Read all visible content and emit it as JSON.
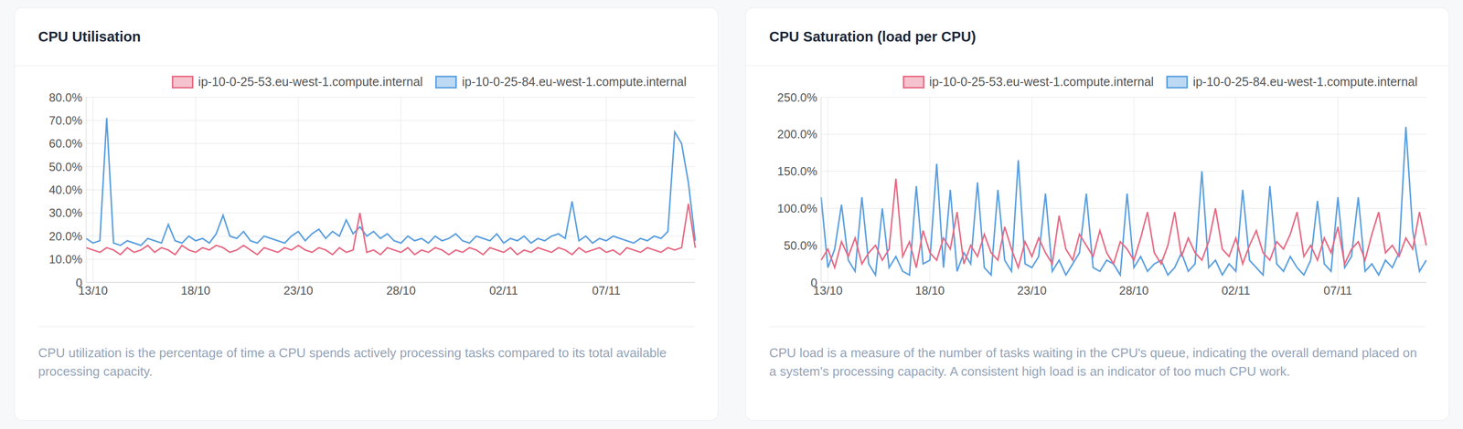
{
  "chart_data": [
    {
      "type": "line",
      "title": "CPU Utilisation",
      "caption": "CPU utilization is the percentage of time a CPU spends actively processing tasks compared to its total available processing capacity.",
      "legend": "top-right",
      "grid": true,
      "categories": [
        null,
        "13/10",
        null,
        null,
        null,
        null,
        null,
        null,
        null,
        null,
        null,
        null,
        null,
        null,
        null,
        null,
        "18/10",
        null,
        null,
        null,
        null,
        null,
        null,
        null,
        null,
        null,
        null,
        null,
        null,
        null,
        null,
        "23/10",
        null,
        null,
        null,
        null,
        null,
        null,
        null,
        null,
        null,
        null,
        null,
        null,
        null,
        null,
        "28/10",
        null,
        null,
        null,
        null,
        null,
        null,
        null,
        null,
        null,
        null,
        null,
        null,
        null,
        null,
        "02/11",
        null,
        null,
        null,
        null,
        null,
        null,
        null,
        null,
        null,
        null,
        null,
        null,
        null,
        null,
        "07/11",
        null,
        null,
        null,
        null,
        null,
        null,
        null,
        null,
        null,
        null,
        null,
        null,
        null
      ],
      "ylim": [
        0,
        80
      ],
      "yticks": [
        0,
        {
          "value": 10,
          "label": "10.0%"
        },
        {
          "value": 20,
          "label": "20.0%"
        },
        {
          "value": 30,
          "label": "30.0%"
        },
        {
          "value": 40,
          "label": "40.0%"
        },
        {
          "value": 50,
          "label": "50.0%"
        },
        {
          "value": 60,
          "label": "60.0%"
        },
        {
          "value": 70,
          "label": "70.0%"
        },
        {
          "value": 80,
          "label": "80.0%"
        }
      ],
      "series": [
        {
          "name": "ip-10-0-25-53.eu-west-1.compute.internal",
          "color": "#e76a84",
          "values": [
            15,
            14,
            13,
            15,
            14,
            12,
            15,
            13,
            14,
            16,
            13,
            15,
            14,
            12,
            16,
            14,
            13,
            15,
            14,
            16,
            15,
            13,
            14,
            16,
            14,
            12,
            15,
            14,
            13,
            15,
            14,
            16,
            14,
            13,
            15,
            14,
            12,
            15,
            13,
            14,
            30,
            13,
            14,
            12,
            15,
            14,
            13,
            15,
            12,
            14,
            13,
            15,
            14,
            12,
            14,
            13,
            15,
            14,
            12,
            15,
            14,
            13,
            15,
            12,
            14,
            13,
            15,
            14,
            13,
            15,
            14,
            12,
            15,
            13,
            14,
            15,
            13,
            14,
            12,
            15,
            14,
            13,
            15,
            14,
            13,
            15,
            14,
            15,
            34,
            15
          ]
        },
        {
          "name": "ip-10-0-25-84.eu-west-1.compute.internal",
          "color": "#5a9fe0",
          "values": [
            19,
            17,
            18,
            71,
            17,
            16,
            18,
            17,
            16,
            19,
            18,
            17,
            25,
            18,
            17,
            20,
            18,
            19,
            17,
            21,
            29,
            20,
            19,
            22,
            18,
            17,
            20,
            19,
            18,
            17,
            20,
            22,
            18,
            21,
            23,
            19,
            22,
            20,
            27,
            21,
            24,
            20,
            22,
            19,
            21,
            18,
            17,
            20,
            18,
            19,
            17,
            20,
            18,
            19,
            21,
            18,
            17,
            20,
            19,
            18,
            21,
            17,
            19,
            18,
            20,
            17,
            19,
            18,
            20,
            21,
            19,
            35,
            18,
            20,
            17,
            19,
            18,
            20,
            19,
            18,
            17,
            19,
            18,
            20,
            19,
            22,
            65,
            60,
            43,
            18
          ]
        }
      ]
    },
    {
      "type": "line",
      "title": "CPU Saturation (load per CPU)",
      "caption": "CPU load is a measure of the number of tasks waiting in the CPU's queue, indicating the overall demand placed on a system's processing capacity. A consistent high load is an indicator of too much CPU work.",
      "legend": "top-right",
      "grid": true,
      "categories": [
        null,
        "13/10",
        null,
        null,
        null,
        null,
        null,
        null,
        null,
        null,
        null,
        null,
        null,
        null,
        null,
        null,
        "18/10",
        null,
        null,
        null,
        null,
        null,
        null,
        null,
        null,
        null,
        null,
        null,
        null,
        null,
        null,
        "23/10",
        null,
        null,
        null,
        null,
        null,
        null,
        null,
        null,
        null,
        null,
        null,
        null,
        null,
        null,
        "28/10",
        null,
        null,
        null,
        null,
        null,
        null,
        null,
        null,
        null,
        null,
        null,
        null,
        null,
        null,
        "02/11",
        null,
        null,
        null,
        null,
        null,
        null,
        null,
        null,
        null,
        null,
        null,
        null,
        null,
        null,
        "07/11",
        null,
        null,
        null,
        null,
        null,
        null,
        null,
        null,
        null,
        null,
        null,
        null,
        null
      ],
      "ylim": [
        0,
        250
      ],
      "yticks": [
        0,
        {
          "value": 50,
          "label": "50.0%"
        },
        {
          "value": 100,
          "label": "100.0%"
        },
        {
          "value": 150,
          "label": "150.0%"
        },
        {
          "value": 200,
          "label": "200.0%"
        },
        {
          "value": 250,
          "label": "250.0%"
        }
      ],
      "series": [
        {
          "name": "ip-10-0-25-53.eu-west-1.compute.internal",
          "color": "#e76a84",
          "values": [
            30,
            45,
            20,
            55,
            35,
            60,
            25,
            40,
            50,
            30,
            45,
            140,
            35,
            55,
            20,
            70,
            40,
            30,
            60,
            45,
            95,
            25,
            50,
            35,
            65,
            40,
            30,
            75,
            45,
            20,
            55,
            35,
            60,
            40,
            25,
            90,
            45,
            30,
            65,
            50,
            35,
            70,
            40,
            25,
            55,
            45,
            30,
            60,
            95,
            40,
            25,
            50,
            95,
            35,
            60,
            40,
            30,
            55,
            100,
            45,
            35,
            60,
            25,
            50,
            70,
            40,
            30,
            55,
            45,
            65,
            95,
            35,
            50,
            30,
            60,
            40,
            75,
            25,
            45,
            55,
            30,
            65,
            95,
            40,
            50,
            35,
            60,
            45,
            95,
            50
          ]
        },
        {
          "name": "ip-10-0-25-84.eu-west-1.compute.internal",
          "color": "#5a9fe0",
          "values": [
            115,
            20,
            45,
            105,
            30,
            15,
            115,
            25,
            10,
            100,
            20,
            35,
            15,
            10,
            130,
            25,
            30,
            160,
            20,
            125,
            15,
            40,
            25,
            135,
            20,
            10,
            125,
            30,
            15,
            165,
            25,
            20,
            35,
            120,
            15,
            30,
            10,
            25,
            40,
            120,
            20,
            15,
            30,
            25,
            10,
            120,
            20,
            35,
            15,
            25,
            30,
            10,
            20,
            40,
            15,
            25,
            150,
            20,
            30,
            10,
            25,
            15,
            125,
            30,
            20,
            10,
            130,
            25,
            15,
            35,
            20,
            10,
            30,
            110,
            25,
            15,
            115,
            20,
            35,
            115,
            15,
            25,
            10,
            30,
            20,
            40,
            210,
            70,
            15,
            30
          ]
        }
      ]
    }
  ]
}
